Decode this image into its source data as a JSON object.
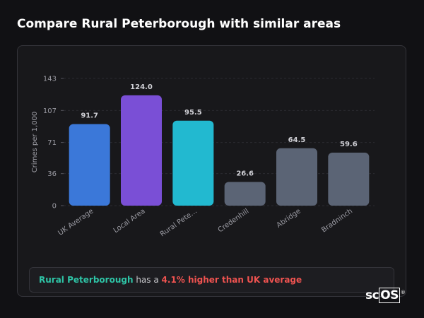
{
  "title": "Compare Rural Peterborough with similar areas",
  "chart_data": {
    "type": "bar",
    "y_label": "Crimes per 1,000",
    "categories": [
      "UK Average",
      "Local Area",
      "Rural Pete…",
      "Credenhill",
      "Abridge",
      "Bradninch"
    ],
    "values": [
      91.7,
      124,
      95.5,
      26.6,
      64.5,
      59.6
    ],
    "value_labels": [
      "91.7",
      "124.0",
      "95.5",
      "26.6",
      "64.5",
      "59.6"
    ],
    "colors": [
      "#3b78d9",
      "#7a4fd6",
      "#22b9d0",
      "#5b6475",
      "#5b6475",
      "#5b6475"
    ],
    "ylim": [
      0,
      143
    ],
    "yticks": [
      0,
      36,
      71,
      107,
      143
    ],
    "grid": true
  },
  "summary": {
    "area": "Rural Peterborough",
    "middle": "has a",
    "highlight": "4.1% higher than UK average"
  },
  "logo": {
    "prefix": "sc",
    "boxed": "OS",
    "mark": "®"
  }
}
